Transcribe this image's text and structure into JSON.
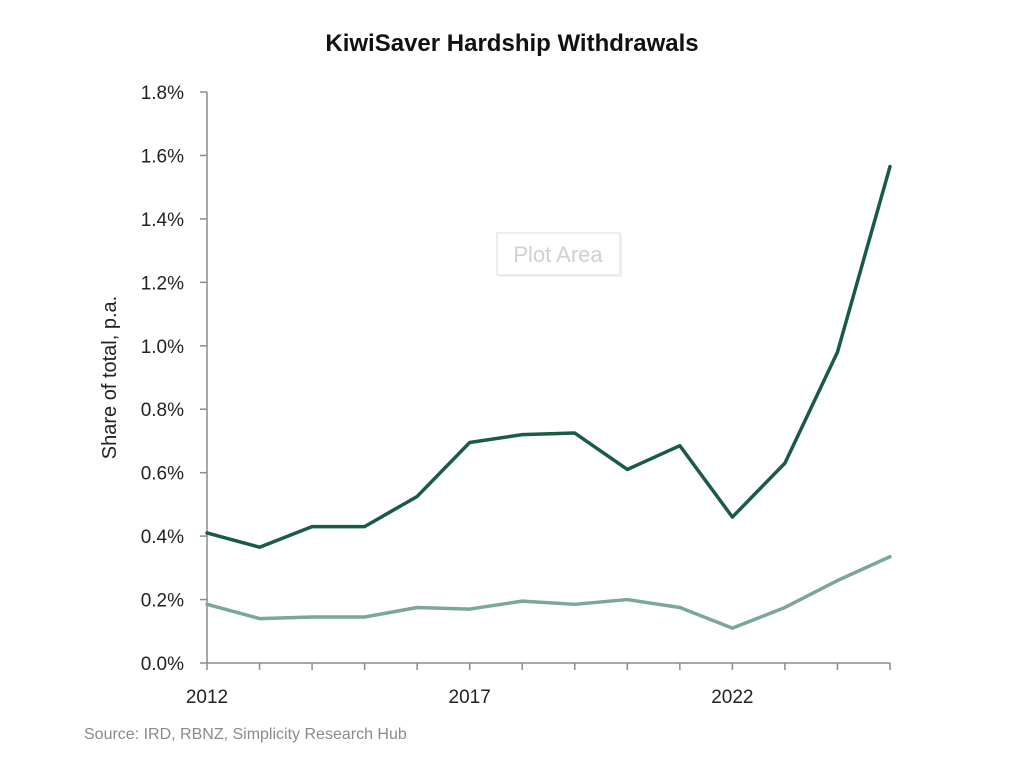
{
  "chart_data": {
    "type": "line",
    "title": "KiwiSaver Hardship Withdrawals",
    "ylabel": "Share of total, p.a.",
    "xlabel": "",
    "x": [
      2012,
      2013,
      2014,
      2015,
      2016,
      2017,
      2018,
      2019,
      2020,
      2021,
      2022,
      2023,
      2024,
      2025
    ],
    "xlim": [
      2012,
      2025
    ],
    "x_ticks": [
      "2012",
      "2017",
      "2022"
    ],
    "ylim": [
      0,
      1.8
    ],
    "y_ticks": [
      "0.0%",
      "0.2%",
      "0.4%",
      "0.6%",
      "0.8%",
      "1.0%",
      "1.2%",
      "1.4%",
      "1.6%",
      "1.8%"
    ],
    "grid": false,
    "legend": "none",
    "series": [
      {
        "color": "#1a5c40",
        "values": [
          0.41,
          0.365,
          0.43,
          0.43,
          0.525,
          0.695,
          0.72,
          0.725,
          0.61,
          0.685,
          0.46,
          0.63,
          0.98,
          1.565
        ]
      },
      {
        "color": "#7aa892",
        "values": [
          0.185,
          0.14,
          0.145,
          0.145,
          0.175,
          0.17,
          0.195,
          0.185,
          0.2,
          0.175,
          0.11,
          0.175,
          0.26,
          0.335
        ]
      }
    ],
    "annotation": "Plot Area",
    "source": "Source: IRD, RBNZ, Simplicity Research Hub"
  }
}
